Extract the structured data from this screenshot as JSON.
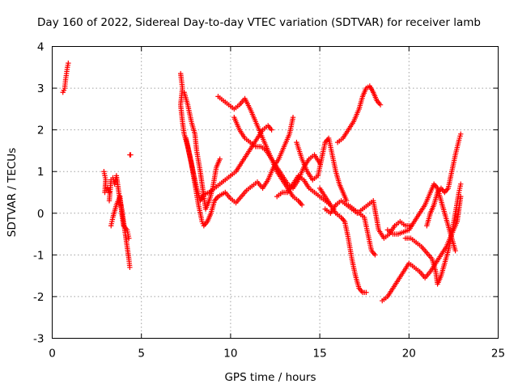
{
  "chart_data": {
    "type": "scatter",
    "title": "Day 160 of 2022, Sidereal Day-to-day VTEC variation (SDTVAR) for receiver lamb",
    "xlabel": "GPS time / hours",
    "ylabel": "SDTVAR / TECUs",
    "xlim": [
      0,
      25
    ],
    "ylim": [
      -3,
      4
    ],
    "xticks": [
      0,
      5,
      10,
      15,
      20,
      25
    ],
    "yticks": [
      -3,
      -2,
      -1,
      0,
      1,
      2,
      3,
      4
    ],
    "xtick_labels": [
      "0",
      "5",
      "10",
      "15",
      "20",
      "25"
    ],
    "ytick_labels": [
      "-3",
      "-2",
      "-1",
      "0",
      "1",
      "2",
      "3",
      "4"
    ],
    "grid": true,
    "marker": "+",
    "color": "#ff0000",
    "series": [
      {
        "name": "s1",
        "points": [
          [
            0.6,
            2.9
          ],
          [
            0.7,
            3.0
          ],
          [
            0.75,
            3.2
          ],
          [
            0.8,
            3.35
          ],
          [
            0.85,
            3.5
          ],
          [
            0.9,
            3.6
          ]
        ]
      },
      {
        "name": "s2",
        "points": [
          [
            2.9,
            1.0
          ],
          [
            3.0,
            0.8
          ],
          [
            2.95,
            0.5
          ],
          [
            3.05,
            0.55
          ],
          [
            3.1,
            0.6
          ],
          [
            3.2,
            0.5
          ]
        ]
      },
      {
        "name": "s3",
        "points": [
          [
            3.2,
            0.3
          ],
          [
            3.3,
            0.8
          ],
          [
            3.4,
            0.85
          ],
          [
            3.5,
            0.7
          ],
          [
            3.6,
            0.9
          ],
          [
            3.7,
            0.6
          ],
          [
            3.8,
            0.3
          ],
          [
            3.9,
            0.1
          ],
          [
            4.0,
            -0.2
          ],
          [
            4.1,
            -0.5
          ],
          [
            4.2,
            -0.8
          ],
          [
            4.3,
            -1.1
          ],
          [
            4.35,
            -1.3
          ]
        ]
      },
      {
        "name": "s4",
        "points": [
          [
            3.3,
            -0.3
          ],
          [
            3.4,
            -0.1
          ],
          [
            3.6,
            0.2
          ],
          [
            3.8,
            0.4
          ],
          [
            3.9,
            0.0
          ],
          [
            4.0,
            -0.3
          ],
          [
            4.2,
            -0.4
          ],
          [
            4.3,
            -0.6
          ]
        ]
      },
      {
        "name": "s5",
        "points": [
          [
            4.35,
            1.4
          ],
          [
            4.4,
            1.4
          ]
        ]
      },
      {
        "name": "s6",
        "points": [
          [
            7.2,
            3.35
          ],
          [
            7.3,
            3.0
          ],
          [
            7.2,
            2.6
          ],
          [
            7.3,
            2.2
          ],
          [
            7.4,
            1.9
          ],
          [
            7.6,
            1.6
          ],
          [
            7.8,
            1.2
          ],
          [
            8.0,
            0.7
          ],
          [
            8.2,
            0.2
          ],
          [
            8.4,
            -0.2
          ],
          [
            8.5,
            -0.3
          ],
          [
            8.7,
            -0.2
          ],
          [
            8.9,
            0.0
          ],
          [
            9.1,
            0.3
          ],
          [
            9.3,
            0.4
          ],
          [
            9.5,
            0.45
          ],
          [
            9.7,
            0.5
          ],
          [
            10.0,
            0.35
          ],
          [
            10.3,
            0.25
          ],
          [
            10.6,
            0.4
          ],
          [
            10.9,
            0.55
          ],
          [
            11.2,
            0.65
          ],
          [
            11.5,
            0.75
          ],
          [
            11.8,
            0.6
          ],
          [
            12.1,
            0.8
          ],
          [
            12.4,
            1.1
          ],
          [
            12.7,
            1.3
          ],
          [
            13.0,
            1.6
          ],
          [
            13.3,
            1.9
          ],
          [
            13.5,
            2.3
          ]
        ]
      },
      {
        "name": "s7",
        "points": [
          [
            7.4,
            2.9
          ],
          [
            7.6,
            2.6
          ],
          [
            7.8,
            2.2
          ],
          [
            8.0,
            1.9
          ],
          [
            8.1,
            1.5
          ],
          [
            8.3,
            1.0
          ],
          [
            8.5,
            0.4
          ],
          [
            8.6,
            0.1
          ],
          [
            8.8,
            0.3
          ],
          [
            9.0,
            0.6
          ],
          [
            9.2,
            1.1
          ],
          [
            9.4,
            1.3
          ]
        ]
      },
      {
        "name": "s8",
        "points": [
          [
            7.5,
            1.8
          ],
          [
            7.7,
            1.4
          ],
          [
            7.9,
            1.0
          ],
          [
            8.1,
            0.6
          ],
          [
            8.3,
            0.3
          ],
          [
            8.5,
            0.45
          ],
          [
            8.8,
            0.5
          ],
          [
            9.1,
            0.6
          ],
          [
            9.4,
            0.7
          ],
          [
            9.7,
            0.8
          ],
          [
            10.0,
            0.9
          ],
          [
            10.3,
            1.0
          ],
          [
            10.6,
            1.2
          ],
          [
            10.9,
            1.4
          ],
          [
            11.2,
            1.6
          ],
          [
            11.5,
            1.8
          ],
          [
            11.8,
            2.0
          ],
          [
            12.1,
            2.1
          ],
          [
            12.3,
            2.0
          ]
        ]
      },
      {
        "name": "s9",
        "points": [
          [
            9.3,
            2.8
          ],
          [
            9.6,
            2.7
          ],
          [
            9.9,
            2.6
          ],
          [
            10.2,
            2.5
          ],
          [
            10.5,
            2.6
          ],
          [
            10.8,
            2.75
          ],
          [
            11.1,
            2.5
          ],
          [
            11.4,
            2.2
          ],
          [
            11.7,
            1.9
          ],
          [
            12.0,
            1.6
          ],
          [
            12.3,
            1.3
          ],
          [
            12.6,
            1.0
          ],
          [
            12.9,
            0.8
          ],
          [
            13.2,
            0.6
          ],
          [
            13.5,
            0.4
          ],
          [
            13.8,
            0.3
          ],
          [
            14.0,
            0.2
          ]
        ]
      },
      {
        "name": "s10",
        "points": [
          [
            10.2,
            2.3
          ],
          [
            10.5,
            2.0
          ],
          [
            10.8,
            1.8
          ],
          [
            11.1,
            1.7
          ],
          [
            11.4,
            1.6
          ],
          [
            11.7,
            1.6
          ],
          [
            12.0,
            1.5
          ],
          [
            12.3,
            1.3
          ],
          [
            12.6,
            1.1
          ],
          [
            12.9,
            0.9
          ],
          [
            13.2,
            0.7
          ],
          [
            13.5,
            0.6
          ],
          [
            13.8,
            0.8
          ],
          [
            14.1,
            1.1
          ],
          [
            14.4,
            1.3
          ],
          [
            14.7,
            1.4
          ],
          [
            15.0,
            1.2
          ]
        ]
      },
      {
        "name": "s11",
        "points": [
          [
            12.6,
            0.4
          ],
          [
            12.9,
            0.5
          ],
          [
            13.2,
            0.5
          ],
          [
            13.5,
            0.7
          ],
          [
            13.8,
            0.9
          ],
          [
            14.1,
            0.8
          ],
          [
            14.4,
            0.6
          ],
          [
            14.7,
            0.5
          ],
          [
            15.0,
            0.4
          ],
          [
            15.3,
            0.3
          ],
          [
            15.6,
            0.2
          ]
        ]
      },
      {
        "name": "s12",
        "points": [
          [
            13.7,
            1.7
          ],
          [
            14.0,
            1.3
          ],
          [
            14.3,
            1.0
          ],
          [
            14.6,
            0.8
          ],
          [
            14.9,
            0.9
          ],
          [
            15.1,
            1.3
          ],
          [
            15.3,
            1.7
          ],
          [
            15.5,
            1.8
          ],
          [
            15.7,
            1.4
          ],
          [
            15.9,
            1.0
          ],
          [
            16.1,
            0.7
          ],
          [
            16.3,
            0.5
          ],
          [
            16.5,
            0.3
          ]
        ]
      },
      {
        "name": "s13",
        "points": [
          [
            15.0,
            0.6
          ],
          [
            15.3,
            0.4
          ],
          [
            15.6,
            0.2
          ],
          [
            15.9,
            0.0
          ],
          [
            16.2,
            -0.1
          ],
          [
            16.4,
            -0.2
          ],
          [
            16.6,
            -0.6
          ],
          [
            16.8,
            -1.1
          ],
          [
            17.0,
            -1.5
          ],
          [
            17.2,
            -1.8
          ],
          [
            17.4,
            -1.9
          ],
          [
            17.6,
            -1.9
          ]
        ]
      },
      {
        "name": "s14",
        "points": [
          [
            16.0,
            1.7
          ],
          [
            16.3,
            1.8
          ],
          [
            16.6,
            2.0
          ],
          [
            16.9,
            2.2
          ],
          [
            17.2,
            2.5
          ],
          [
            17.4,
            2.8
          ],
          [
            17.6,
            3.0
          ],
          [
            17.8,
            3.05
          ],
          [
            18.0,
            2.9
          ],
          [
            18.2,
            2.7
          ],
          [
            18.4,
            2.6
          ]
        ]
      },
      {
        "name": "s15",
        "points": [
          [
            15.3,
            0.1
          ],
          [
            15.6,
            0.0
          ],
          [
            15.9,
            0.2
          ],
          [
            16.2,
            0.3
          ],
          [
            16.5,
            0.2
          ],
          [
            16.8,
            0.1
          ],
          [
            17.1,
            0.0
          ],
          [
            17.4,
            0.1
          ],
          [
            17.7,
            0.2
          ],
          [
            18.0,
            0.3
          ],
          [
            18.3,
            -0.4
          ],
          [
            18.6,
            -0.6
          ],
          [
            18.9,
            -0.5
          ],
          [
            19.2,
            -0.3
          ],
          [
            19.5,
            -0.2
          ],
          [
            19.8,
            -0.3
          ],
          [
            20.1,
            -0.3
          ]
        ]
      },
      {
        "name": "s16",
        "points": [
          [
            16.6,
            0.2
          ],
          [
            16.9,
            0.1
          ],
          [
            17.2,
            0.0
          ],
          [
            17.5,
            -0.1
          ],
          [
            17.7,
            -0.5
          ],
          [
            17.9,
            -0.9
          ],
          [
            18.1,
            -1.0
          ]
        ]
      },
      {
        "name": "s17",
        "points": [
          [
            18.5,
            -2.1
          ],
          [
            18.8,
            -2.0
          ],
          [
            19.1,
            -1.8
          ],
          [
            19.4,
            -1.6
          ],
          [
            19.7,
            -1.4
          ],
          [
            20.0,
            -1.2
          ],
          [
            20.3,
            -1.3
          ],
          [
            20.6,
            -1.4
          ],
          [
            20.9,
            -1.55
          ],
          [
            21.2,
            -1.4
          ],
          [
            21.5,
            -1.2
          ],
          [
            21.8,
            -1.0
          ],
          [
            22.1,
            -0.8
          ],
          [
            22.4,
            -0.5
          ],
          [
            22.7,
            -0.2
          ],
          [
            22.9,
            0.4
          ]
        ]
      },
      {
        "name": "s18",
        "points": [
          [
            18.8,
            -0.4
          ],
          [
            19.1,
            -0.5
          ],
          [
            19.4,
            -0.5
          ],
          [
            19.7,
            -0.45
          ],
          [
            20.0,
            -0.4
          ],
          [
            20.3,
            -0.2
          ],
          [
            20.6,
            0.0
          ],
          [
            20.9,
            0.2
          ],
          [
            21.2,
            0.5
          ],
          [
            21.4,
            0.7
          ],
          [
            21.6,
            0.6
          ],
          [
            21.8,
            0.3
          ],
          [
            22.0,
            0.0
          ],
          [
            22.2,
            -0.3
          ],
          [
            22.4,
            -0.6
          ],
          [
            22.6,
            -0.9
          ]
        ]
      },
      {
        "name": "s19",
        "points": [
          [
            19.8,
            -0.6
          ],
          [
            20.1,
            -0.6
          ],
          [
            20.4,
            -0.7
          ],
          [
            20.7,
            -0.8
          ],
          [
            21.0,
            -0.95
          ],
          [
            21.3,
            -1.1
          ],
          [
            21.5,
            -1.4
          ],
          [
            21.6,
            -1.7
          ],
          [
            21.8,
            -1.5
          ],
          [
            22.0,
            -1.2
          ],
          [
            22.2,
            -0.9
          ],
          [
            22.4,
            -0.5
          ],
          [
            22.6,
            0.0
          ],
          [
            22.8,
            0.5
          ],
          [
            22.9,
            0.7
          ]
        ]
      },
      {
        "name": "s20",
        "points": [
          [
            21.0,
            -0.3
          ],
          [
            21.2,
            0.0
          ],
          [
            21.4,
            0.2
          ],
          [
            21.6,
            0.5
          ],
          [
            21.8,
            0.6
          ],
          [
            22.0,
            0.5
          ],
          [
            22.2,
            0.6
          ],
          [
            22.4,
            1.0
          ],
          [
            22.6,
            1.4
          ],
          [
            22.8,
            1.75
          ],
          [
            22.9,
            1.9
          ]
        ]
      }
    ]
  }
}
